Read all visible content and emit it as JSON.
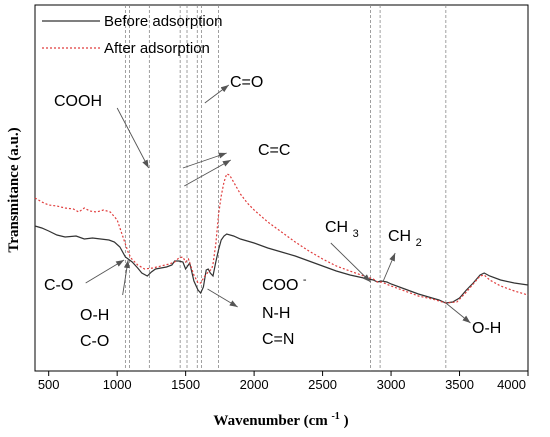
{
  "chart_data": {
    "type": "line",
    "xlabel": "Wavenumber (cm",
    "xlabel_sup": "-1",
    "xlabel_end": ")",
    "ylabel": "Transmitance (a.u.)",
    "xlim": [
      400,
      4000
    ],
    "x_ticks": [
      500,
      1000,
      1500,
      2000,
      2500,
      3000,
      3500,
      4000
    ],
    "legend_position": "top-left",
    "series": [
      {
        "name": "Before adsorption",
        "color": "#333333",
        "style": "solid",
        "points": [
          [
            400,
            226
          ],
          [
            450,
            228
          ],
          [
            500,
            231
          ],
          [
            560,
            235
          ],
          [
            620,
            237
          ],
          [
            700,
            236
          ],
          [
            760,
            239
          ],
          [
            820,
            238
          ],
          [
            880,
            239
          ],
          [
            940,
            240
          ],
          [
            980,
            242
          ],
          [
            1020,
            247
          ],
          [
            1060,
            257
          ],
          [
            1090,
            260
          ],
          [
            1110,
            262
          ],
          [
            1150,
            268
          ],
          [
            1180,
            273
          ],
          [
            1220,
            276
          ],
          [
            1250,
            272
          ],
          [
            1280,
            269
          ],
          [
            1320,
            268
          ],
          [
            1360,
            267
          ],
          [
            1400,
            265
          ],
          [
            1420,
            261
          ],
          [
            1450,
            261
          ],
          [
            1480,
            262
          ],
          [
            1500,
            269
          ],
          [
            1530,
            263
          ],
          [
            1560,
            281
          ],
          [
            1590,
            290
          ],
          [
            1610,
            293
          ],
          [
            1630,
            287
          ],
          [
            1650,
            270
          ],
          [
            1665,
            269
          ],
          [
            1680,
            273
          ],
          [
            1700,
            276
          ],
          [
            1720,
            262
          ],
          [
            1740,
            250
          ],
          [
            1760,
            240
          ],
          [
            1780,
            236
          ],
          [
            1800,
            234
          ],
          [
            1850,
            236
          ],
          [
            1900,
            239
          ],
          [
            1950,
            241
          ],
          [
            2000,
            243
          ],
          [
            2100,
            248
          ],
          [
            2200,
            252
          ],
          [
            2300,
            256
          ],
          [
            2400,
            261
          ],
          [
            2500,
            266
          ],
          [
            2600,
            271
          ],
          [
            2700,
            275
          ],
          [
            2800,
            278
          ],
          [
            2870,
            280
          ],
          [
            2900,
            282
          ],
          [
            2930,
            281
          ],
          [
            2970,
            282
          ],
          [
            3000,
            284
          ],
          [
            3100,
            289
          ],
          [
            3200,
            294
          ],
          [
            3300,
            298
          ],
          [
            3350,
            300
          ],
          [
            3400,
            303
          ],
          [
            3450,
            302
          ],
          [
            3500,
            298
          ],
          [
            3550,
            290
          ],
          [
            3600,
            283
          ],
          [
            3650,
            275
          ],
          [
            3680,
            273
          ],
          [
            3720,
            276
          ],
          [
            3800,
            280
          ],
          [
            3900,
            283
          ],
          [
            4000,
            285
          ]
        ]
      },
      {
        "name": "After adsorption",
        "color": "#e03c3c",
        "style": "dotted",
        "points": [
          [
            400,
            198
          ],
          [
            450,
            202
          ],
          [
            500,
            205
          ],
          [
            560,
            206
          ],
          [
            620,
            208
          ],
          [
            680,
            209
          ],
          [
            720,
            212
          ],
          [
            760,
            208
          ],
          [
            800,
            211
          ],
          [
            850,
            212
          ],
          [
            900,
            210
          ],
          [
            950,
            212
          ],
          [
            1000,
            220
          ],
          [
            1050,
            240
          ],
          [
            1080,
            252
          ],
          [
            1100,
            258
          ],
          [
            1150,
            265
          ],
          [
            1200,
            269
          ],
          [
            1260,
            268
          ],
          [
            1320,
            266
          ],
          [
            1380,
            264
          ],
          [
            1420,
            262
          ],
          [
            1450,
            258
          ],
          [
            1480,
            257
          ],
          [
            1500,
            262
          ],
          [
            1520,
            259
          ],
          [
            1560,
            275
          ],
          [
            1590,
            283
          ],
          [
            1610,
            283
          ],
          [
            1640,
            276
          ],
          [
            1665,
            272
          ],
          [
            1690,
            269
          ],
          [
            1700,
            264
          ],
          [
            1720,
            244
          ],
          [
            1740,
            215
          ],
          [
            1760,
            196
          ],
          [
            1780,
            182
          ],
          [
            1800,
            174
          ],
          [
            1820,
            175
          ],
          [
            1850,
            182
          ],
          [
            1900,
            194
          ],
          [
            1950,
            203
          ],
          [
            2000,
            210
          ],
          [
            2100,
            222
          ],
          [
            2200,
            232
          ],
          [
            2300,
            242
          ],
          [
            2400,
            251
          ],
          [
            2500,
            259
          ],
          [
            2600,
            266
          ],
          [
            2700,
            271
          ],
          [
            2800,
            276
          ],
          [
            2870,
            279
          ],
          [
            2900,
            282
          ],
          [
            2930,
            282
          ],
          [
            3000,
            286
          ],
          [
            3100,
            291
          ],
          [
            3200,
            296
          ],
          [
            3300,
            299
          ],
          [
            3400,
            303
          ],
          [
            3480,
            302
          ],
          [
            3550,
            292
          ],
          [
            3600,
            284
          ],
          [
            3650,
            276
          ],
          [
            3680,
            275
          ],
          [
            3720,
            280
          ],
          [
            3800,
            286
          ],
          [
            3900,
            291
          ],
          [
            4000,
            295
          ]
        ]
      }
    ],
    "vlines": [
      1060,
      1090,
      1235,
      1460,
      1510,
      1585,
      1615,
      1740,
      2850,
      2920,
      3400
    ],
    "annotations": [
      {
        "lines": [
          "COOH"
        ],
        "from": [
          1000,
          108
        ],
        "to": [
          1230,
          168
        ]
      },
      {
        "lines": [
          "C=O"
        ],
        "from": [
          1640,
          103
        ],
        "to": [
          1815,
          85
        ]
      },
      {
        "lines": [
          "C=C"
        ],
        "from": [
          1480,
          168
        ],
        "to": [
          1800,
          153
        ]
      },
      {
        "lines": [
          "C=C"
        ],
        "from": [
          1490,
          186
        ],
        "to": [
          1830,
          160
        ]
      },
      {
        "lines": [
          "C-O"
        ],
        "from": [
          770,
          283
        ],
        "to": [
          1050,
          260
        ]
      },
      {
        "lines": [
          "O-H",
          "C-O"
        ],
        "from": [
          1040,
          295
        ],
        "to": [
          1080,
          260
        ]
      },
      {
        "lines": [
          "COO-",
          "N-H",
          "C=N"
        ],
        "from": [
          1660,
          289
        ],
        "to": [
          1880,
          307
        ]
      },
      {
        "lines": [
          "CH3"
        ],
        "from": [
          2560,
          243
        ],
        "to": [
          2850,
          282
        ]
      },
      {
        "lines": [
          "CH2"
        ],
        "from": [
          2940,
          282
        ],
        "to": [
          3030,
          253
        ]
      },
      {
        "lines": [
          "O-H"
        ],
        "from": [
          3400,
          303
        ],
        "to": [
          3580,
          323
        ]
      }
    ]
  },
  "legend": {
    "before_label": "Before adsorption",
    "after_label": "After adsorption"
  },
  "labels": {
    "cooh": "COOH",
    "c_o_top": "C=O",
    "c_c": "C=C",
    "c_o_single": "C-O",
    "o_h_left": "O-H",
    "c_o_left2": "C-O",
    "coo": "COO",
    "coo_sup": "-",
    "n_h": "N-H",
    "c_n": "C=N",
    "ch3_main": "CH",
    "ch3_sub": "3",
    "ch2_main": "CH",
    "ch2_sub": "2",
    "o_h_right": "O-H"
  }
}
